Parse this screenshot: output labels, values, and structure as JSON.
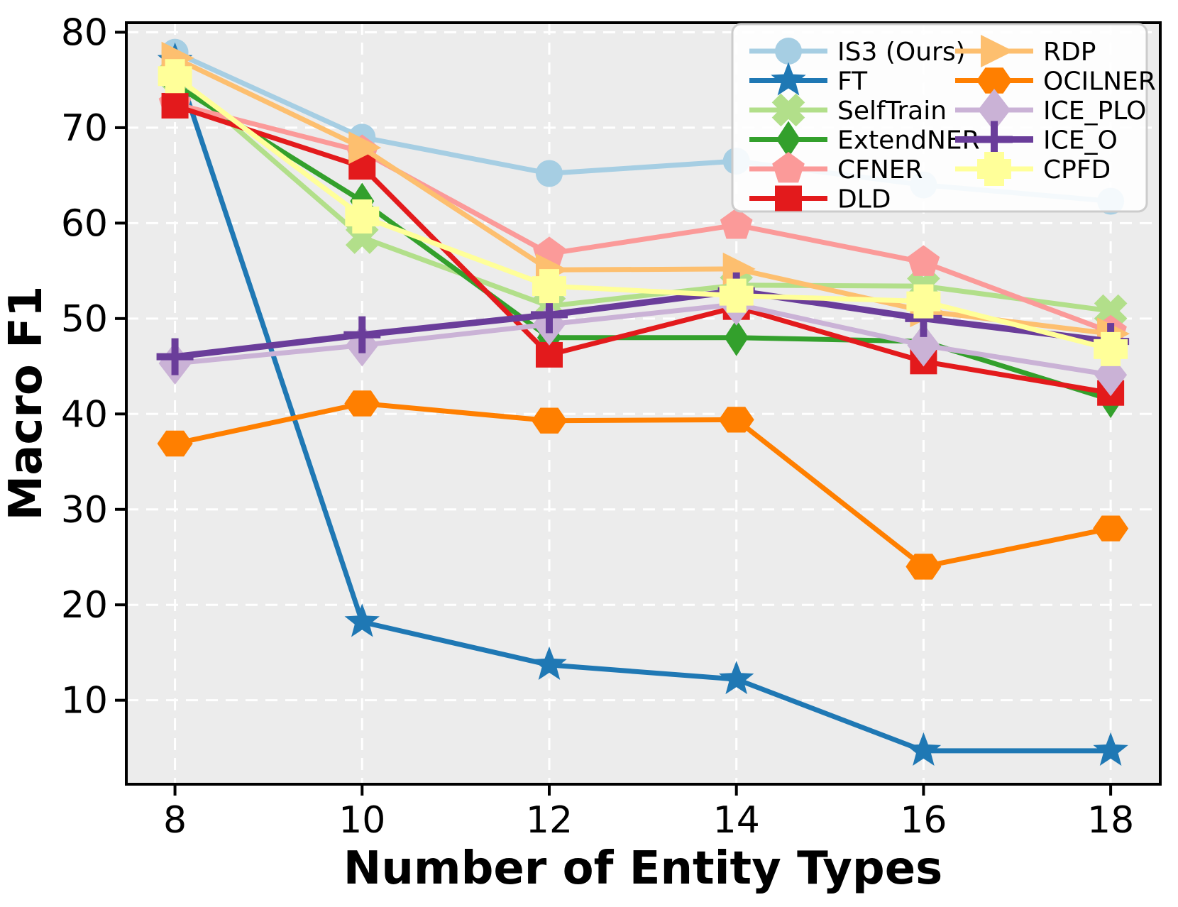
{
  "chart_data": {
    "type": "line",
    "title": "",
    "xlabel": "Number of Entity Types",
    "ylabel": "Macro F1",
    "x": [
      8,
      10,
      12,
      14,
      16,
      18
    ],
    "xticks": [
      8,
      10,
      12,
      14,
      16,
      18
    ],
    "yticks": [
      10,
      20,
      30,
      40,
      50,
      60,
      70,
      80
    ],
    "xlim": [
      7.48,
      18.53
    ],
    "ylim": [
      1.2,
      81.0
    ],
    "grid": "white dashed gridlines on light gray background",
    "legend_position": "upper right, 2 columns",
    "legend_columns": [
      6,
      5
    ],
    "plot_bg_color": "#ececec",
    "grid_color": "#ffffff",
    "spine_color": "#000000",
    "series": [
      {
        "name": "IS3 (Ours)",
        "color": "#a6cee3",
        "marker": "circle",
        "values": [
          77.9,
          69.0,
          65.2,
          66.5,
          64.0,
          62.3
        ]
      },
      {
        "name": "FT",
        "color": "#1f78b4",
        "marker": "star",
        "values": [
          77.0,
          18.2,
          13.7,
          12.2,
          4.7,
          4.7
        ]
      },
      {
        "name": "SelfTrain",
        "color": "#b2df8a",
        "marker": "x",
        "values": [
          75.5,
          58.5,
          51.3,
          53.5,
          53.4,
          50.8
        ]
      },
      {
        "name": "ExtendNER",
        "color": "#33a02c",
        "marker": "diamond",
        "values": [
          74.5,
          62.3,
          48.0,
          48.0,
          47.6,
          41.5
        ]
      },
      {
        "name": "CFNER",
        "color": "#fb9a99",
        "marker": "pentagon",
        "values": [
          72.5,
          67.5,
          56.8,
          59.8,
          55.9,
          48.6
        ]
      },
      {
        "name": "DLD",
        "color": "#e31a1c",
        "marker": "square",
        "values": [
          72.3,
          65.9,
          46.2,
          51.2,
          45.5,
          42.2
        ]
      },
      {
        "name": "RDP",
        "color": "#fdbf6f",
        "marker": "triangle-right",
        "values": [
          77.3,
          67.9,
          55.1,
          55.2,
          50.8,
          48.4
        ]
      },
      {
        "name": "OCILNER",
        "color": "#ff7f00",
        "marker": "hexagon",
        "values": [
          36.9,
          41.1,
          39.3,
          39.4,
          24.0,
          28.0
        ]
      },
      {
        "name": "ICE_PLO",
        "color": "#cab2d6",
        "marker": "thin-diamond",
        "values": [
          45.3,
          47.2,
          49.4,
          51.5,
          47.2,
          44.1
        ]
      },
      {
        "name": "ICE_O",
        "color": "#6a3d9a",
        "marker": "plus-open",
        "values": [
          46.0,
          48.3,
          50.4,
          52.9,
          50.0,
          47.6
        ]
      },
      {
        "name": "CPFD",
        "color": "#ffff99",
        "marker": "plus-filled",
        "values": [
          75.4,
          60.7,
          53.4,
          52.4,
          51.8,
          46.8
        ]
      }
    ]
  }
}
